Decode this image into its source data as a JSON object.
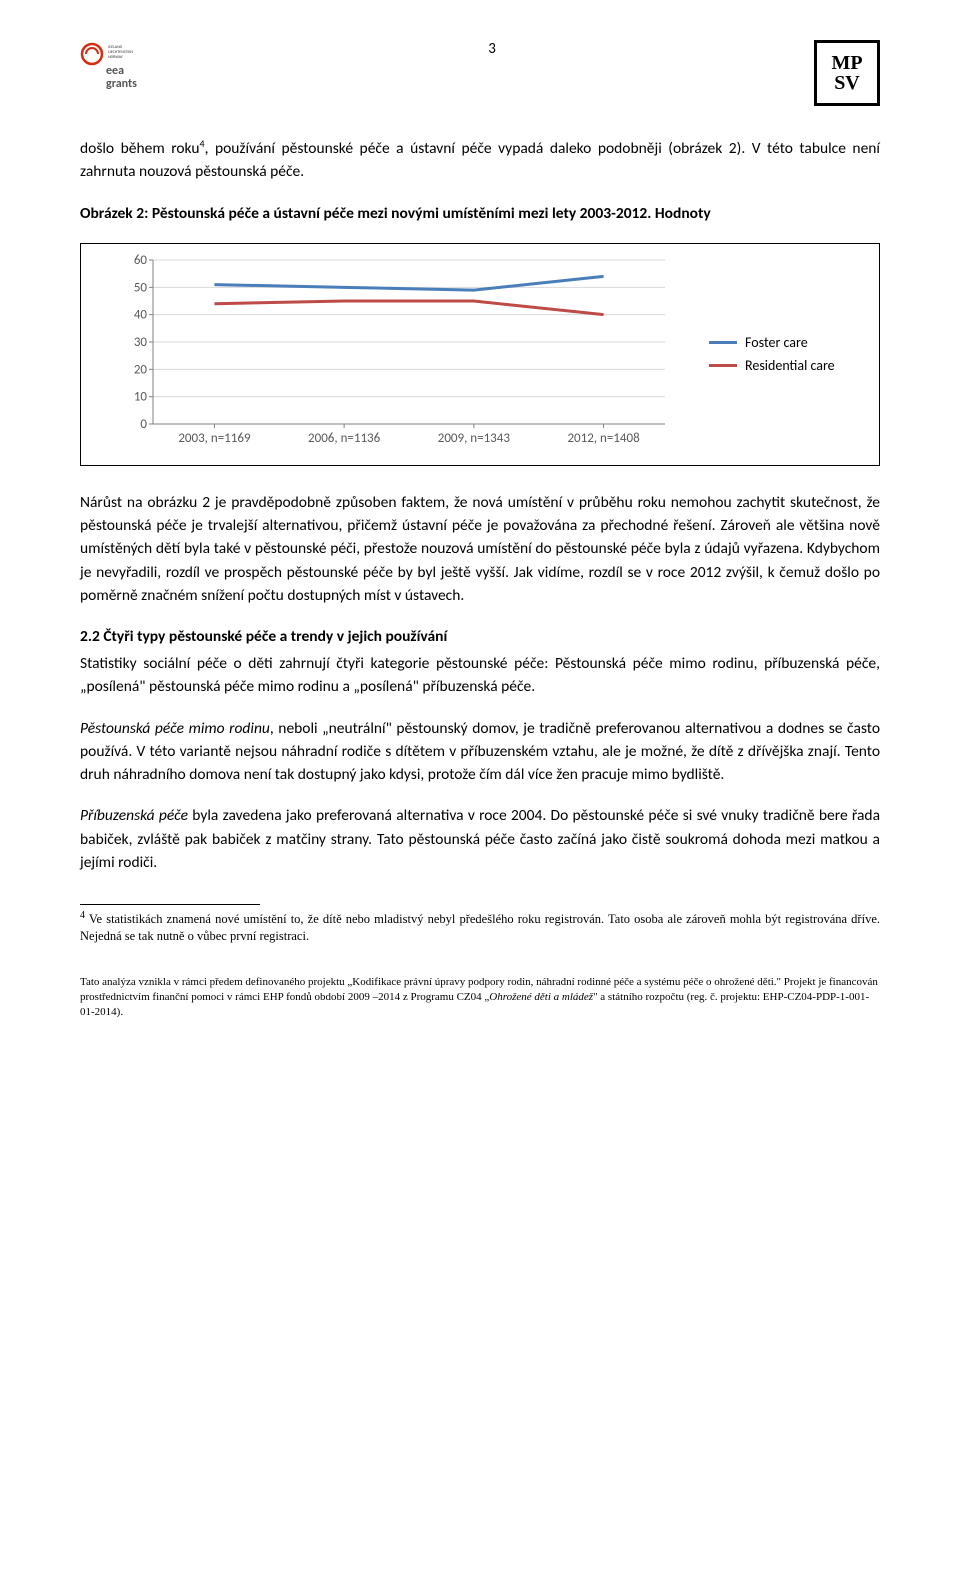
{
  "page_number": "3",
  "logo_right": {
    "line1": "MP",
    "line2": "SV"
  },
  "para1_a": "došlo během roku",
  "para1_sup": "4",
  "para1_b": ", používání pěstounské péče a ústavní péče vypadá daleko podobněji (obrázek 2). V této tabulce není zahrnuta nouzová pěstounská péče.",
  "figure_caption": "Obrázek 2: Pěstounská péče a ústavní péče mezi novými umístěními mezi lety 2003-2012. Hodnoty",
  "chart": {
    "type": "line",
    "ylim": [
      0,
      60
    ],
    "ytick_step": 10,
    "yticks": [
      "0",
      "10",
      "20",
      "30",
      "40",
      "50",
      "60"
    ],
    "categories": [
      "2003, n=1169",
      "2006, n=1136",
      "2009, n=1343",
      "2012, n=1408"
    ],
    "series": [
      {
        "name": "Foster care",
        "color": "#4a7ebb",
        "values": [
          51,
          50,
          49,
          54
        ]
      },
      {
        "name": "Residential care",
        "color": "#be4b48",
        "values": [
          44,
          45,
          45,
          40
        ]
      }
    ],
    "grid_color": "#d9d9d9",
    "axis_color": "#808080",
    "background_color": "#ffffff",
    "tick_fontsize": 13,
    "legend_fontsize": 14,
    "line_width": 3
  },
  "para2": "Nárůst na obrázku 2 je pravděpodobně způsoben faktem, že nová umístění v průběhu roku nemohou zachytit skutečnost, že pěstounská péče je trvalejší alternativou, přičemž ústavní péče je považována za přechodné řešení. Zároveň ale většina nově umístěných dětí byla také v pěstounské péči, přestože nouzová umístění do pěstounské péče byla z údajů vyřazena. Kdybychom je nevyřadili, rozdíl ve prospěch pěstounské péče by byl ještě vyšší. Jak vidíme, rozdíl se v roce 2012 zvýšil, k čemuž došlo po poměrně značném snížení počtu dostupných míst v ústavech.",
  "heading": "2.2 Čtyři typy pěstounské péče a trendy v jejich používání",
  "para3": "Statistiky sociální péče o děti zahrnují čtyři kategorie pěstounské péče: Pěstounská péče mimo rodinu, příbuzenská péče, „posílená\" pěstounská péče mimo rodinu a „posílená\" příbuzenská péče.",
  "para4_italic": "Pěstounská péče mimo rodinu",
  "para4_rest": ", neboli „neutrální\" pěstounský domov, je tradičně preferovanou alternativou a dodnes se často používá. V této variantě nejsou náhradní rodiče s dítětem v příbuzenském vztahu, ale je možné, že dítě z dřívějška znají. Tento druh náhradního domova není tak dostupný jako kdysi, protože čím dál více žen pracuje mimo bydliště.",
  "para5_italic": "Příbuzenská péče",
  "para5_rest": " byla zavedena jako preferovaná alternativa v roce 2004. Do pěstounské péče si své vnuky tradičně bere řada babiček, zvláště pak babiček z matčiny strany. Tato pěstounská péče často začíná jako čistě soukromá dohoda mezi matkou a jejími rodiči.",
  "footnote_sup": "4",
  "footnote_text": " Ve statistikách znamená nové umístění to, že dítě nebo mladistvý nebyl předešlého roku registrován. Tato osoba ale zároveň mohla být registrována dříve. Nejedná se tak nutně o vůbec první registraci.",
  "footer_text_a": "Tato analýza vznikla v rámci předem definovaného projektu „Kodifikace právní úpravy podpory rodin, náhradní rodinné péče a systému péče o ohrožené děti.\" Projekt je financován prostřednictvím finanční pomoci v rámci EHP fondů období 2009 –2014 z Programu CZ04 „",
  "footer_text_italic": "Ohrožené děti a mládež",
  "footer_text_b": "\" a státního rozpočtu (reg. č. projektu: EHP-CZ04-PDP-1-001-01-2014)."
}
